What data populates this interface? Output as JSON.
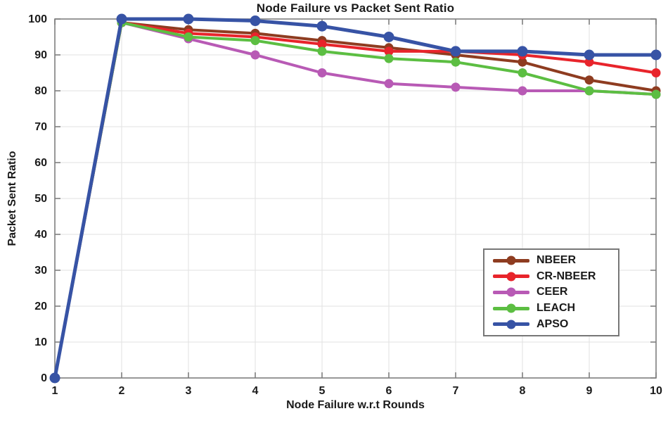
{
  "title": "Node Failure vs Packet Sent Ratio",
  "xlabel": "Node Failure w.r.t Rounds",
  "ylabel": "Packet Sent Ratio",
  "chart_data": {
    "type": "line",
    "x": [
      1,
      2,
      3,
      4,
      5,
      6,
      7,
      8,
      9,
      10
    ],
    "series": [
      {
        "name": "NBEER",
        "color": "#8e3c20",
        "values": [
          0,
          99,
          97,
          96,
          94,
          92,
          90,
          88,
          83,
          80
        ]
      },
      {
        "name": "CR-NBEER",
        "color": "#e8242b",
        "values": [
          0,
          99,
          96,
          95,
          93,
          91,
          91,
          90,
          88,
          85
        ]
      },
      {
        "name": "CEER",
        "color": "#b85ab5",
        "values": [
          0,
          99,
          94.5,
          90,
          85,
          82,
          81,
          80,
          80,
          79
        ]
      },
      {
        "name": "LEACH",
        "color": "#5cbe42",
        "values": [
          0,
          99,
          95,
          94,
          91,
          89,
          88,
          85,
          80,
          79
        ]
      },
      {
        "name": "APSO",
        "color": "#3753a5",
        "values": [
          0,
          100,
          100,
          99.5,
          98,
          95,
          91,
          91,
          90,
          90
        ]
      }
    ],
    "xticks": [
      1,
      2,
      3,
      4,
      5,
      6,
      7,
      8,
      9,
      10
    ],
    "yticks": [
      0,
      10,
      20,
      30,
      40,
      50,
      60,
      70,
      80,
      90,
      100
    ],
    "xlim": [
      1,
      10
    ],
    "ylim": [
      0,
      100
    ],
    "grid": true,
    "legend_position": "right-center",
    "axis_color": "#7e7e7e",
    "grid_color": "#e2e2e2",
    "tick_label_color": "#1a1a1a"
  }
}
